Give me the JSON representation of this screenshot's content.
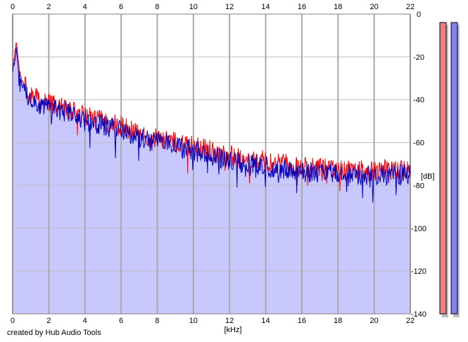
{
  "chart_data": {
    "type": "area",
    "title": "",
    "xlabel": "[kHz]",
    "ylabel": "[dB]",
    "xlim": [
      0,
      22
    ],
    "ylim": [
      -140,
      0
    ],
    "x_ticks": [
      0,
      2,
      4,
      6,
      8,
      10,
      12,
      14,
      16,
      18,
      20,
      22
    ],
    "y_ticks": [
      0,
      -20,
      -40,
      -60,
      -80,
      -100,
      -120,
      -140
    ],
    "x_tick_labels": [
      "0",
      "2",
      "4",
      "6",
      "8",
      "10",
      "12",
      "14",
      "16",
      "18",
      "20",
      "22"
    ],
    "y_tick_labels": [
      "0",
      "-20",
      "-40",
      "-60",
      "-80",
      "-100",
      "-120",
      "-140"
    ],
    "grid": true,
    "series": [
      {
        "color": "#ff0000",
        "x": [
          0,
          0.2,
          0.4,
          0.6,
          0.8,
          1,
          1.5,
          2,
          2.5,
          3,
          3.5,
          4,
          4.5,
          5,
          5.5,
          6,
          6.5,
          7,
          7.5,
          8,
          8.5,
          9,
          9.5,
          10,
          10.5,
          11,
          11.5,
          12,
          12.5,
          13,
          13.5,
          14,
          14.5,
          15,
          15.5,
          16,
          16.5,
          17,
          17.5,
          18,
          18.5,
          19,
          19.5,
          20,
          20.5,
          21,
          21.5,
          22
        ],
        "values": [
          -25,
          -14,
          -28,
          -32,
          -35,
          -38,
          -40,
          -42,
          -43,
          -44,
          -46,
          -48,
          -49,
          -50,
          -51,
          -52,
          -54,
          -56,
          -57,
          -58,
          -59,
          -60,
          -61,
          -62,
          -63,
          -64,
          -65,
          -66,
          -67,
          -68,
          -68,
          -69,
          -70,
          -70,
          -71,
          -71,
          -72,
          -72,
          -72,
          -73,
          -73,
          -73,
          -73,
          -73,
          -73,
          -73,
          -73,
          -73
        ]
      },
      {
        "color": "#0000c0",
        "x": [
          0,
          0.2,
          0.4,
          0.6,
          0.8,
          1,
          1.5,
          2,
          2.5,
          3,
          3.5,
          4,
          4.5,
          5,
          5.5,
          6,
          6.5,
          7,
          7.5,
          8,
          8.5,
          9,
          9.5,
          10,
          10.5,
          11,
          11.5,
          12,
          12.5,
          13,
          13.5,
          14,
          14.5,
          15,
          15.5,
          16,
          16.5,
          17,
          17.5,
          18,
          18.5,
          19,
          19.5,
          20,
          20.5,
          21,
          21.5,
          22
        ],
        "values": [
          -28,
          -16,
          -30,
          -34,
          -37,
          -40,
          -42,
          -44,
          -45,
          -46,
          -48,
          -50,
          -51,
          -52,
          -53,
          -54,
          -56,
          -58,
          -59,
          -60,
          -61,
          -62,
          -63,
          -64,
          -65,
          -66,
          -67,
          -68,
          -69,
          -70,
          -70,
          -71,
          -72,
          -72,
          -73,
          -73,
          -74,
          -74,
          -74,
          -75,
          -75,
          -75,
          -75,
          -75,
          -75,
          -75,
          -75,
          -75
        ]
      }
    ],
    "fill_color": "#c8c8ff",
    "meters": [
      {
        "color": "#f08080"
      },
      {
        "color": "#8080f0"
      }
    ]
  },
  "credit": "created by Hub Audio Tools"
}
